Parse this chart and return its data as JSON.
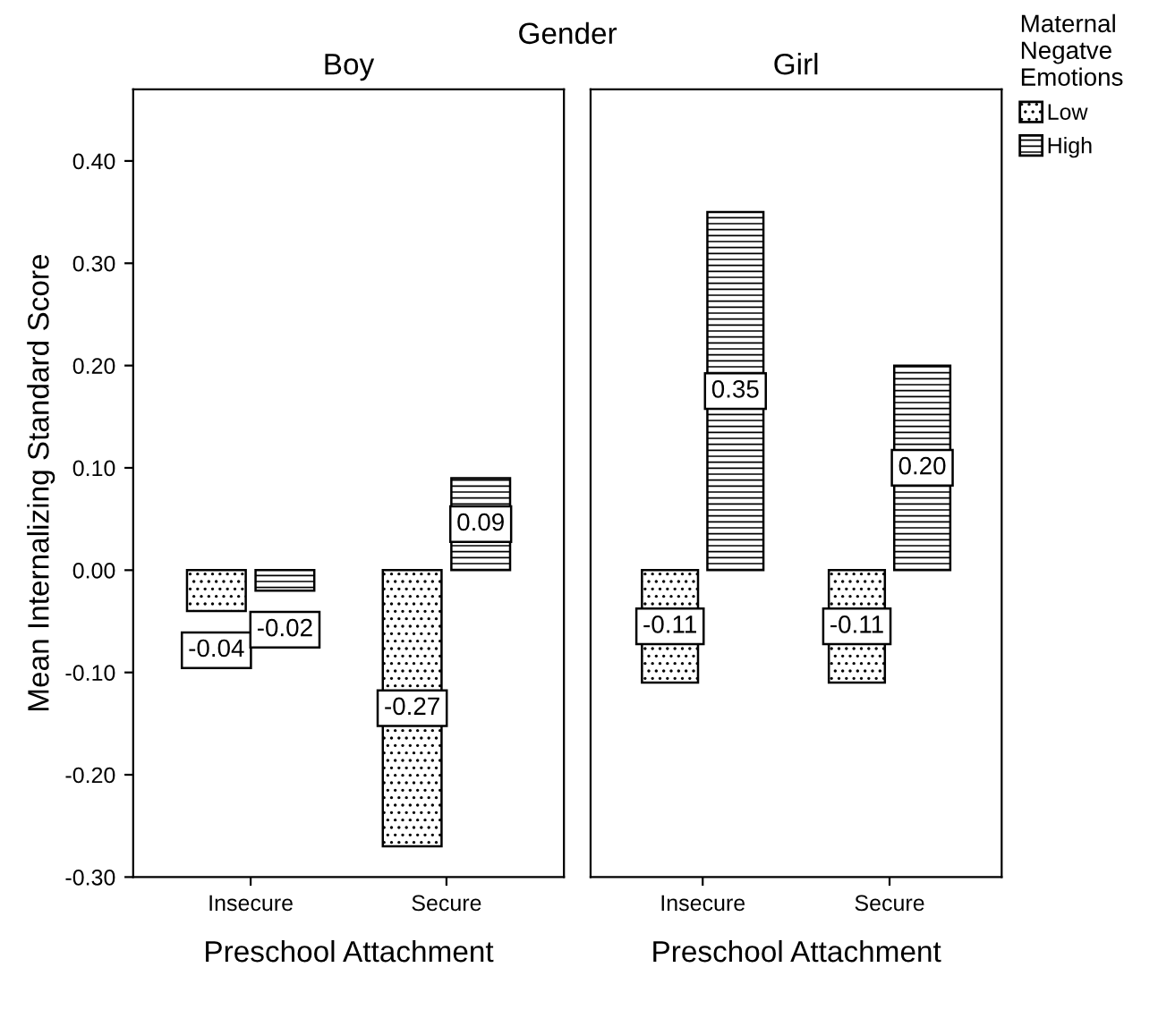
{
  "chart_data": [
    {
      "type": "bar",
      "title": "Boy",
      "xlabel": "Preschool Attachment",
      "ylabel": "Mean Internalizing Standard Score",
      "annotations": [
        "Gender"
      ],
      "legend_title": "Maternal Negatve Emotions",
      "legend": "top right",
      "categories": [
        "Insecure",
        "Secure"
      ],
      "series": [
        {
          "name": "Low",
          "color": "#000000",
          "values": [
            -0.04,
            -0.27
          ],
          "value_labels": [
            "-0.04",
            "-0.27"
          ]
        },
        {
          "name": "High",
          "color": "#000000",
          "values": [
            -0.02,
            0.09
          ],
          "value_labels": [
            "-0.02",
            "0.09"
          ]
        }
      ],
      "ylim": [
        -0.3,
        0.47
      ],
      "yticks": [
        {
          "value": -0.3,
          "label": "-0.30"
        },
        {
          "value": -0.2,
          "label": "-0.20"
        },
        {
          "value": -0.1,
          "label": "-0.10"
        },
        {
          "value": 0,
          "label": "0.00"
        },
        {
          "value": 0.1,
          "label": "0.10"
        },
        {
          "value": 0.2,
          "label": "0.20"
        },
        {
          "value": 0.3,
          "label": "0.30"
        },
        {
          "value": 0.4,
          "label": "0.40"
        }
      ],
      "grid": false
    },
    {
      "type": "bar",
      "title": "Girl",
      "xlabel": "Preschool Attachment",
      "categories": [
        "Insecure",
        "Secure"
      ],
      "series": [
        {
          "color": "#000000",
          "values": [
            -0.11,
            -0.11
          ],
          "value_labels": [
            "-0.11",
            "-0.11"
          ]
        },
        {
          "color": "#000000",
          "values": [
            0.35,
            0.2
          ],
          "value_labels": [
            "0.35",
            "0.20"
          ]
        }
      ],
      "ylim": [
        -0.3,
        0.47
      ],
      "tick_labels": "x",
      "grid": false
    }
  ]
}
